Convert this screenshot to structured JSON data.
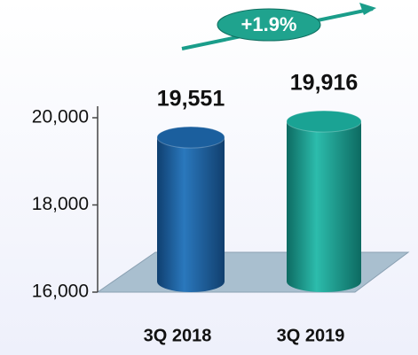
{
  "chart_data": {
    "type": "bar",
    "categories": [
      "3Q 2018",
      "3Q 2019"
    ],
    "values": [
      19551,
      19916
    ],
    "value_labels": [
      "19,551",
      "19,916"
    ],
    "colors": [
      "#1b5f9e",
      "#1aa394"
    ],
    "ylim": [
      16000,
      20000
    ],
    "yticks": [
      {
        "value": 16000,
        "label": "16,000"
      },
      {
        "value": 18000,
        "label": "18,000"
      },
      {
        "value": 20000,
        "label": "20,000"
      }
    ],
    "annotation": "+1.9%"
  }
}
